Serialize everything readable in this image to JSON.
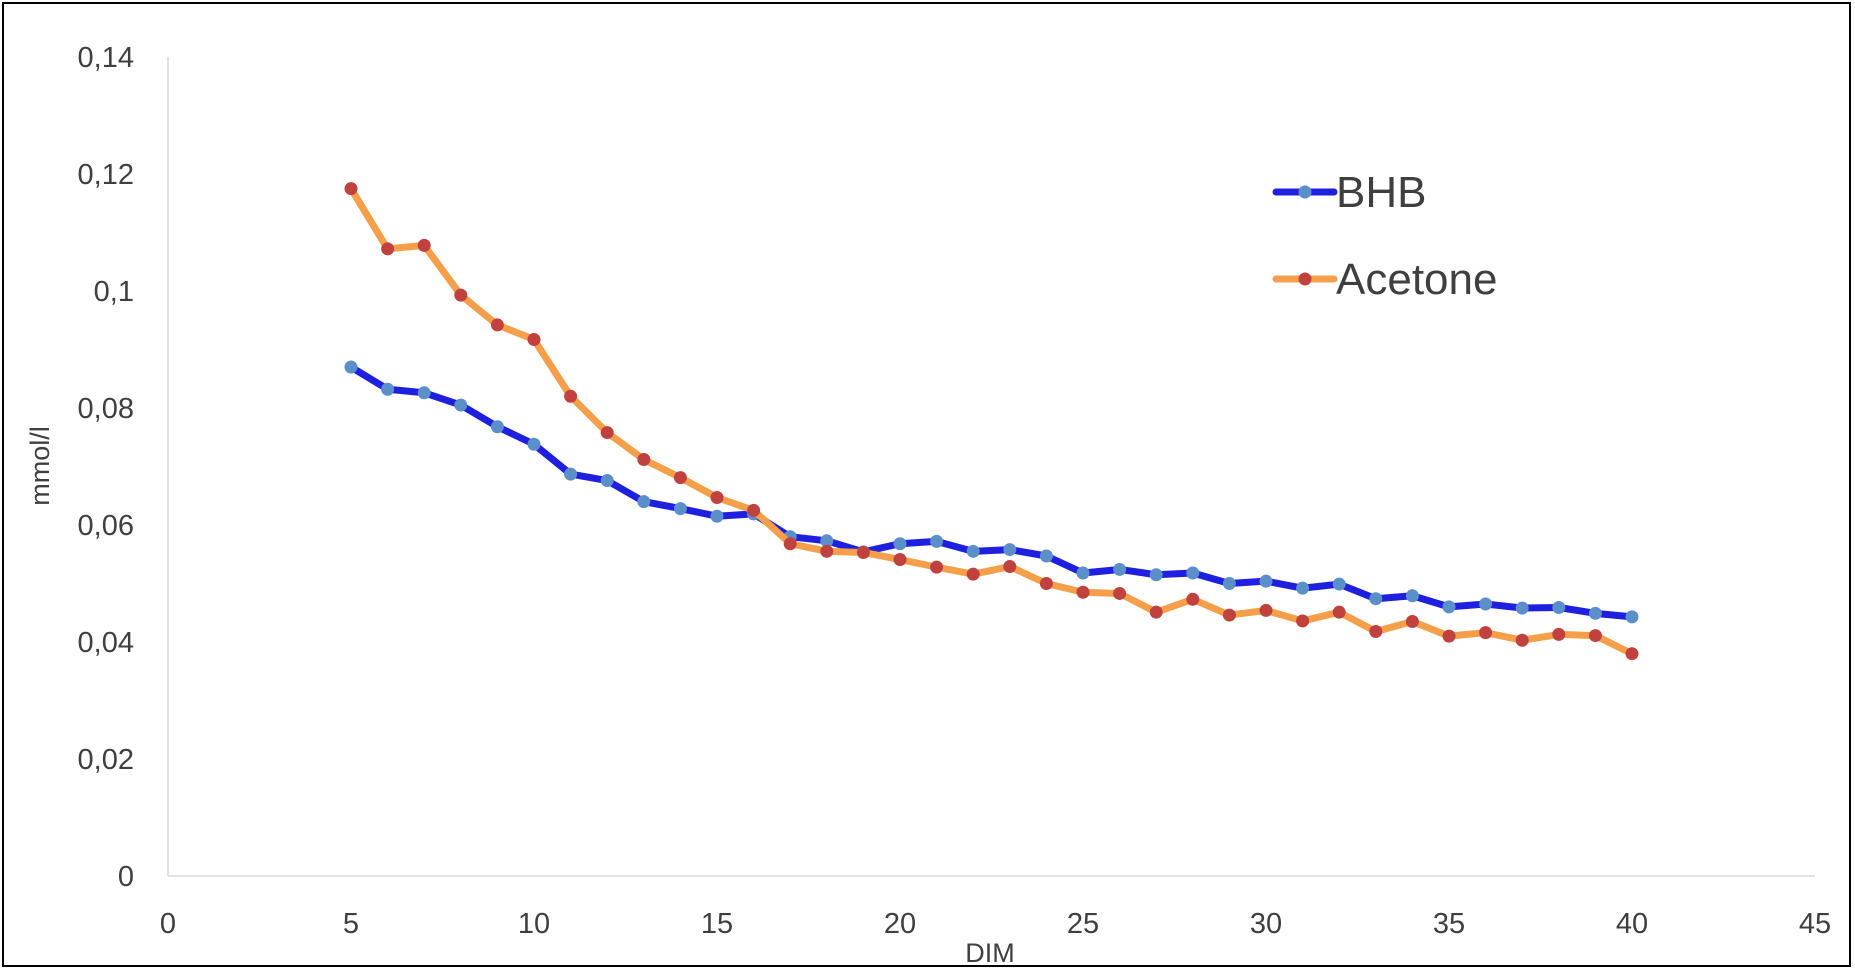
{
  "chart_data": {
    "type": "line",
    "title": "",
    "xlabel": "DIM",
    "ylabel": "mmol/l",
    "xlim": [
      0,
      45
    ],
    "ylim": [
      0,
      0.14
    ],
    "x_ticks": [
      0,
      5,
      10,
      15,
      20,
      25,
      30,
      35,
      40,
      45
    ],
    "x_tick_labels": [
      "0",
      "5",
      "10",
      "15",
      "20",
      "25",
      "30",
      "35",
      "40",
      "45"
    ],
    "y_ticks": [
      0,
      0.02,
      0.04,
      0.06,
      0.08,
      0.1,
      0.12,
      0.14
    ],
    "y_tick_labels": [
      "0",
      "0,02",
      "0,04",
      "0,06",
      "0,08",
      "0,1",
      "0,12",
      "0,14"
    ],
    "grid": false,
    "legend_position": "top-right",
    "x": [
      5,
      6,
      7,
      8,
      9,
      10,
      11,
      12,
      13,
      14,
      15,
      16,
      17,
      18,
      19,
      20,
      21,
      22,
      23,
      24,
      25,
      26,
      27,
      28,
      29,
      30,
      31,
      32,
      33,
      34,
      35,
      36,
      37,
      38,
      39,
      40
    ],
    "series": [
      {
        "name": "BHB",
        "line_color": "#1f1fe0",
        "marker_color": "#5b8fc9",
        "values": [
          0.087,
          0.0832,
          0.0826,
          0.0805,
          0.0768,
          0.0738,
          0.0687,
          0.0676,
          0.064,
          0.0628,
          0.0615,
          0.0619,
          0.058,
          0.0573,
          0.0554,
          0.0568,
          0.0572,
          0.0555,
          0.0558,
          0.0547,
          0.0518,
          0.0524,
          0.0515,
          0.0518,
          0.05,
          0.0504,
          0.0492,
          0.0499,
          0.0474,
          0.0479,
          0.046,
          0.0465,
          0.0458,
          0.0459,
          0.0449,
          0.0443
        ]
      },
      {
        "name": "Acetone",
        "line_color": "#f59f4a",
        "marker_color": "#c0413e",
        "values": [
          0.1175,
          0.1072,
          0.1078,
          0.0993,
          0.0942,
          0.0917,
          0.082,
          0.0758,
          0.0712,
          0.0681,
          0.0647,
          0.0625,
          0.0568,
          0.0555,
          0.0553,
          0.0541,
          0.0528,
          0.0516,
          0.0529,
          0.05,
          0.0485,
          0.0483,
          0.0451,
          0.0473,
          0.0446,
          0.0454,
          0.0436,
          0.0451,
          0.0418,
          0.0435,
          0.041,
          0.0416,
          0.0403,
          0.0413,
          0.0411,
          0.038
        ]
      }
    ]
  }
}
